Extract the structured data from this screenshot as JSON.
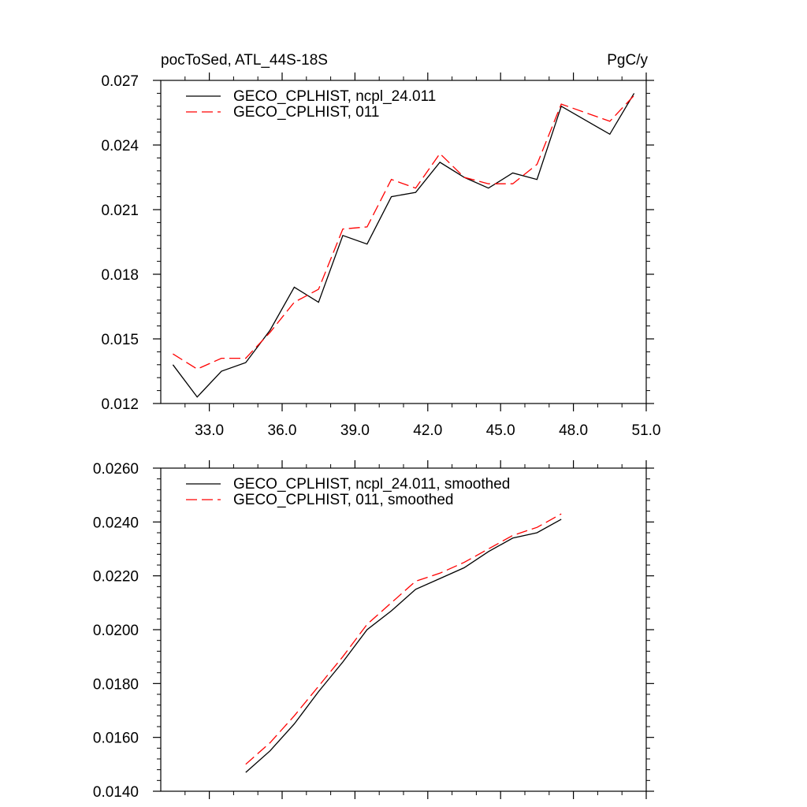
{
  "chart_data": [
    {
      "type": "line",
      "title_left": "pocToSed, ATL_44S-18S",
      "title_right": "PgC/y",
      "xlim": [
        31.0,
        51.0
      ],
      "ylim": [
        0.012,
        0.027
      ],
      "x_ticks": [
        33.0,
        36.0,
        39.0,
        42.0,
        45.0,
        48.0,
        51.0
      ],
      "x_tick_labels": [
        "33.0",
        "36.0",
        "39.0",
        "42.0",
        "45.0",
        "48.0",
        "51.0"
      ],
      "y_ticks": [
        0.012,
        0.015,
        0.018,
        0.021,
        0.024,
        0.027
      ],
      "y_tick_labels": [
        "0.012",
        "0.015",
        "0.018",
        "0.021",
        "0.024",
        "0.027"
      ],
      "legend_position": "top-left",
      "x": [
        31.5,
        32.5,
        33.5,
        34.5,
        35.5,
        36.5,
        37.5,
        38.5,
        39.5,
        40.5,
        41.5,
        42.5,
        43.5,
        44.5,
        45.5,
        46.5,
        47.5,
        49.5,
        50.5
      ],
      "series": [
        {
          "name": "GECO_CPLHIST, ncpl_24.011",
          "color": "#000000",
          "dash": "solid",
          "values": [
            0.0138,
            0.0123,
            0.0135,
            0.0139,
            0.0154,
            0.0174,
            0.0167,
            0.0198,
            0.0194,
            0.0216,
            0.0218,
            0.0232,
            0.0225,
            0.022,
            0.0227,
            0.0224,
            0.0258,
            0.0245,
            0.0264
          ]
        },
        {
          "name": "GECO_CPLHIST, 011",
          "color": "#ff0000",
          "dash": "dashed",
          "values": [
            0.0143,
            0.0136,
            0.0141,
            0.0141,
            0.0153,
            0.0167,
            0.0173,
            0.0201,
            0.0202,
            0.0224,
            0.022,
            0.0236,
            0.0225,
            0.0222,
            0.0222,
            0.0231,
            0.0259,
            0.0251,
            0.0263
          ]
        }
      ]
    },
    {
      "type": "line",
      "xlim": [
        31.0,
        51.0
      ],
      "ylim": [
        0.014,
        0.026
      ],
      "y_ticks": [
        0.014,
        0.016,
        0.018,
        0.02,
        0.022,
        0.024,
        0.026
      ],
      "y_tick_labels": [
        "0.0140",
        "0.0160",
        "0.0180",
        "0.0200",
        "0.0220",
        "0.0240",
        "0.0260"
      ],
      "legend_position": "top-left",
      "x": [
        34.5,
        35.5,
        36.5,
        37.5,
        38.5,
        39.5,
        40.5,
        41.5,
        42.5,
        43.5,
        44.5,
        45.5,
        46.5,
        47.5
      ],
      "series": [
        {
          "name": "GECO_CPLHIST, ncpl_24.011, smoothed",
          "color": "#000000",
          "dash": "solid",
          "values": [
            0.0147,
            0.0155,
            0.0165,
            0.0177,
            0.0188,
            0.02,
            0.0207,
            0.0215,
            0.0219,
            0.0223,
            0.0229,
            0.0234,
            0.0236,
            0.0241
          ]
        },
        {
          "name": "GECO_CPLHIST, 011, smoothed",
          "color": "#ff0000",
          "dash": "dashed",
          "values": [
            0.015,
            0.0158,
            0.0168,
            0.0179,
            0.019,
            0.0202,
            0.021,
            0.0218,
            0.0221,
            0.0225,
            0.023,
            0.0235,
            0.0238,
            0.0243
          ]
        }
      ]
    }
  ]
}
